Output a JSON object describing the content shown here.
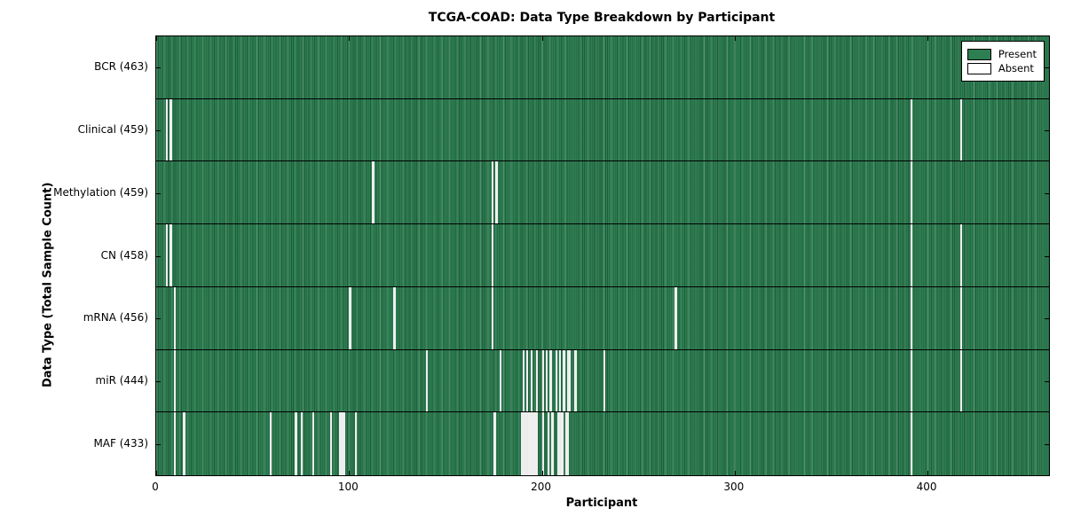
{
  "chart_data": {
    "type": "heatmap",
    "title": "TCGA-COAD: Data Type Breakdown by Participant",
    "xlabel": "Participant",
    "ylabel": "Data Type (Total Sample Count)",
    "x_total_participants": 463,
    "xlim": [
      0,
      463
    ],
    "x_ticks": [
      0,
      100,
      200,
      300,
      400
    ],
    "legend": [
      {
        "label": "Present",
        "color": "#2d7f52"
      },
      {
        "label": "Absent",
        "color": "#ffffff"
      }
    ],
    "colors": {
      "present_fill": "#2d7f52",
      "present_line_dark": "#1f5e3d",
      "present_line_light": "#55a87b",
      "absent_fill": "#efefef",
      "axis": "#000000",
      "background": "#ffffff"
    },
    "rows": [
      {
        "label": "BCR (463)",
        "data_type": "BCR",
        "present_count": 463,
        "absent_participants": []
      },
      {
        "label": "Clinical (459)",
        "data_type": "Clinical",
        "present_count": 459,
        "absent_participants": [
          5,
          7,
          391,
          417
        ]
      },
      {
        "label": "Methylation (459)",
        "data_type": "Methylation",
        "present_count": 459,
        "absent_participants": [
          112,
          174,
          176,
          391
        ]
      },
      {
        "label": "CN (458)",
        "data_type": "CN",
        "present_count": 458,
        "absent_participants": [
          5,
          7,
          174,
          391,
          417
        ]
      },
      {
        "label": "mRNA (456)",
        "data_type": "mRNA",
        "present_count": 456,
        "absent_participants": [
          9,
          100,
          123,
          174,
          269,
          391,
          417
        ]
      },
      {
        "label": "miR (444)",
        "data_type": "miR",
        "present_count": 444,
        "absent_participants": [
          9,
          140,
          178,
          190,
          192,
          194,
          197,
          200,
          202,
          204,
          207,
          209,
          211,
          213,
          214,
          217,
          232,
          391,
          417
        ]
      },
      {
        "label": "MAF (433)",
        "data_type": "MAF",
        "present_count": 433,
        "absent_participants": [
          9,
          14,
          59,
          72,
          75,
          81,
          90,
          95,
          96,
          97,
          103,
          175,
          189,
          190,
          191,
          192,
          193,
          194,
          195,
          196,
          197,
          200,
          203,
          205,
          208,
          209,
          210,
          212,
          213,
          391
        ]
      }
    ]
  }
}
